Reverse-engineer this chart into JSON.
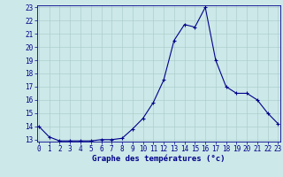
{
  "hours": [
    0,
    1,
    2,
    3,
    4,
    5,
    6,
    7,
    8,
    9,
    10,
    11,
    12,
    13,
    14,
    15,
    16,
    17,
    18,
    19,
    20,
    21,
    22,
    23
  ],
  "temperatures": [
    14.0,
    13.2,
    12.9,
    12.9,
    12.9,
    12.9,
    13.0,
    13.0,
    13.1,
    13.8,
    14.6,
    15.8,
    17.5,
    20.5,
    21.7,
    21.5,
    23.0,
    19.0,
    17.0,
    16.5,
    16.5,
    16.0,
    15.0,
    14.2
  ],
  "xlabel": "Graphe des températures (°c)",
  "ylim_min": 13,
  "ylim_max": 23,
  "xlim_min": 0,
  "xlim_max": 23,
  "yticks": [
    13,
    14,
    15,
    16,
    17,
    18,
    19,
    20,
    21,
    22,
    23
  ],
  "xticks": [
    0,
    1,
    2,
    3,
    4,
    5,
    6,
    7,
    8,
    9,
    10,
    11,
    12,
    13,
    14,
    15,
    16,
    17,
    18,
    19,
    20,
    21,
    22,
    23
  ],
  "line_color": "#00008B",
  "marker": "+",
  "marker_size": 3,
  "bg_color": "#cce8e8",
  "grid_color": "#a8c8c8",
  "axis_color": "#00008B",
  "label_color": "#00008B",
  "tick_fontsize": 5.5,
  "xlabel_fontsize": 6.5,
  "linewidth": 0.8
}
